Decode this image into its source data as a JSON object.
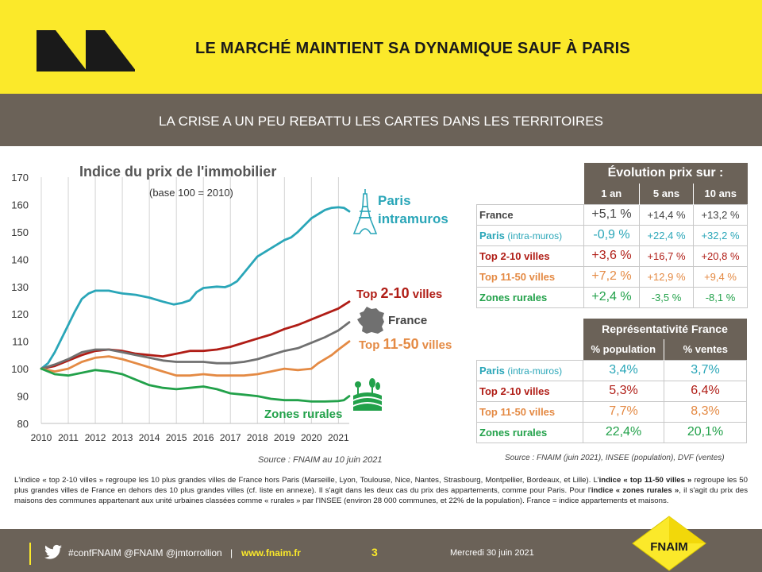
{
  "header": {
    "title": "LE MARCHÉ MAINTIENT SA DYNAMIQUE SAUF À PARIS",
    "subtitle": "LA CRISE A UN PEU REBATTU LES CARTES DANS LES TERRITOIRES"
  },
  "chart_data": {
    "type": "line",
    "title": "Indice du prix de l'immobilier",
    "subtitle": "(base 100 = 2010)",
    "source": "Source :  FNAIM au 10 juin 2021",
    "xlim": [
      2010,
      2021.4
    ],
    "ylim": [
      80,
      170
    ],
    "x_ticks": [
      "2010",
      "2011",
      "2012",
      "2013",
      "2014",
      "2015",
      "2016",
      "2017",
      "2018",
      "2019",
      "2020",
      "2021"
    ],
    "y_ticks": [
      "80",
      "90",
      "100",
      "110",
      "120",
      "130",
      "140",
      "150",
      "160",
      "170"
    ],
    "grid": "vertical",
    "series": [
      {
        "name": "Paris intramuros",
        "color": "#2aa6b8",
        "points": [
          [
            2010,
            100
          ],
          [
            2010.25,
            102
          ],
          [
            2010.5,
            106
          ],
          [
            2010.75,
            111
          ],
          [
            2011,
            116
          ],
          [
            2011.25,
            121
          ],
          [
            2011.5,
            125.5
          ],
          [
            2011.75,
            127.5
          ],
          [
            2012,
            128.5
          ],
          [
            2012.5,
            128.5
          ],
          [
            2012.75,
            128
          ],
          [
            2013,
            127.5
          ],
          [
            2013.5,
            127
          ],
          [
            2014,
            126
          ],
          [
            2014.5,
            124.5
          ],
          [
            2014.9,
            123.5
          ],
          [
            2015.2,
            124
          ],
          [
            2015.5,
            125
          ],
          [
            2015.75,
            128
          ],
          [
            2016,
            129.5
          ],
          [
            2016.5,
            130
          ],
          [
            2016.8,
            129.8
          ],
          [
            2017,
            130.5
          ],
          [
            2017.25,
            132
          ],
          [
            2017.5,
            135
          ],
          [
            2017.75,
            138
          ],
          [
            2018,
            141
          ],
          [
            2018.5,
            144
          ],
          [
            2019,
            147
          ],
          [
            2019.25,
            148
          ],
          [
            2019.5,
            150
          ],
          [
            2019.75,
            152.5
          ],
          [
            2020,
            155
          ],
          [
            2020.25,
            156.5
          ],
          [
            2020.5,
            158
          ],
          [
            2020.75,
            158.8
          ],
          [
            2021,
            159
          ],
          [
            2021.2,
            158.8
          ],
          [
            2021.4,
            157.5
          ]
        ]
      },
      {
        "name": "Top 2-10 villes",
        "color": "#b01d16",
        "points": [
          [
            2010,
            100
          ],
          [
            2010.5,
            101
          ],
          [
            2011,
            103
          ],
          [
            2011.5,
            105
          ],
          [
            2012,
            106.5
          ],
          [
            2012.5,
            107
          ],
          [
            2013,
            106.5
          ],
          [
            2013.5,
            105.5
          ],
          [
            2014,
            105
          ],
          [
            2014.5,
            104.5
          ],
          [
            2015,
            105.5
          ],
          [
            2015.5,
            106.5
          ],
          [
            2016,
            106.5
          ],
          [
            2016.5,
            107
          ],
          [
            2017,
            108
          ],
          [
            2017.5,
            109.5
          ],
          [
            2018,
            111
          ],
          [
            2018.5,
            112.5
          ],
          [
            2019,
            114.5
          ],
          [
            2019.5,
            116
          ],
          [
            2020,
            118
          ],
          [
            2020.5,
            120
          ],
          [
            2021,
            122
          ],
          [
            2021.4,
            124.5
          ]
        ]
      },
      {
        "name": "France",
        "color": "#707070",
        "points": [
          [
            2010,
            100
          ],
          [
            2010.5,
            101.5
          ],
          [
            2011,
            103.5
          ],
          [
            2011.5,
            106
          ],
          [
            2012,
            107
          ],
          [
            2012.5,
            107
          ],
          [
            2013,
            106
          ],
          [
            2013.5,
            105
          ],
          [
            2014,
            104
          ],
          [
            2014.5,
            103
          ],
          [
            2015,
            102.5
          ],
          [
            2015.5,
            102.5
          ],
          [
            2016,
            102.5
          ],
          [
            2016.5,
            102
          ],
          [
            2017,
            102
          ],
          [
            2017.5,
            102.5
          ],
          [
            2018,
            103.5
          ],
          [
            2018.5,
            105
          ],
          [
            2019,
            106.5
          ],
          [
            2019.5,
            107.5
          ],
          [
            2020,
            109.5
          ],
          [
            2020.5,
            111.5
          ],
          [
            2021,
            114
          ],
          [
            2021.4,
            117
          ]
        ]
      },
      {
        "name": "Top 11-50 villes",
        "color": "#e48a44",
        "points": [
          [
            2010,
            100
          ],
          [
            2010.5,
            99
          ],
          [
            2011,
            100
          ],
          [
            2011.5,
            102.5
          ],
          [
            2012,
            104
          ],
          [
            2012.5,
            104.5
          ],
          [
            2013,
            103.5
          ],
          [
            2013.5,
            102
          ],
          [
            2014,
            100.5
          ],
          [
            2014.5,
            99
          ],
          [
            2015,
            97.5
          ],
          [
            2015.5,
            97.5
          ],
          [
            2016,
            98
          ],
          [
            2016.5,
            97.5
          ],
          [
            2017,
            97.5
          ],
          [
            2017.5,
            97.5
          ],
          [
            2018,
            98
          ],
          [
            2018.5,
            99
          ],
          [
            2019,
            100
          ],
          [
            2019.5,
            99.5
          ],
          [
            2020,
            100
          ],
          [
            2020.25,
            102
          ],
          [
            2020.5,
            103.5
          ],
          [
            2020.75,
            105
          ],
          [
            2021,
            107
          ],
          [
            2021.4,
            110
          ]
        ]
      },
      {
        "name": "Zones rurales",
        "color": "#22a14a",
        "points": [
          [
            2010,
            100
          ],
          [
            2010.5,
            98
          ],
          [
            2011,
            97.5
          ],
          [
            2011.5,
            98.5
          ],
          [
            2012,
            99.5
          ],
          [
            2012.5,
            99
          ],
          [
            2013,
            98
          ],
          [
            2013.5,
            96
          ],
          [
            2014,
            94
          ],
          [
            2014.5,
            93
          ],
          [
            2015,
            92.5
          ],
          [
            2015.5,
            93
          ],
          [
            2016,
            93.5
          ],
          [
            2016.5,
            92.5
          ],
          [
            2017,
            91
          ],
          [
            2017.5,
            90.5
          ],
          [
            2018,
            90
          ],
          [
            2018.5,
            89
          ],
          [
            2019,
            88.5
          ],
          [
            2019.5,
            88.5
          ],
          [
            2020,
            88
          ],
          [
            2020.5,
            88
          ],
          [
            2021,
            88.2
          ],
          [
            2021.2,
            88.5
          ],
          [
            2021.4,
            90
          ]
        ]
      }
    ]
  },
  "labels": {
    "paris_line1": "Paris",
    "paris_line2": "intramuros",
    "top210_prefix": "Top ",
    "top210_big": "2-10",
    "top210_suffix": " villes",
    "france": "France",
    "top1150_prefix": "Top ",
    "top1150_big": "11-50",
    "top1150_suffix": " villes",
    "rural": "Zones rurales"
  },
  "evolution_table": {
    "title": "Évolution prix sur :",
    "columns": [
      "1 an",
      "5 ans",
      "10 ans"
    ],
    "rows": [
      {
        "label": "France",
        "small": "",
        "values": [
          "+5,1 %",
          "+14,4 %",
          "+13,2 %"
        ]
      },
      {
        "label": "Paris ",
        "small": "(intra-muros)",
        "values": [
          "-0,9 %",
          "+22,4 %",
          "+32,2 %"
        ]
      },
      {
        "label": "Top 2-10 villes",
        "small": "",
        "values": [
          "+3,6 %",
          "+16,7 %",
          "+20,8 %"
        ]
      },
      {
        "label": "Top 11-50 villes",
        "small": "",
        "values": [
          "+7,2 %",
          "+12,9 %",
          "+9,4 %"
        ]
      },
      {
        "label": "Zones rurales",
        "small": "",
        "values": [
          "+2,4 %",
          "-3,5 %",
          "-8,1 %"
        ]
      }
    ]
  },
  "representativity_table": {
    "title": "Représentativité France",
    "columns": [
      "% population",
      "% ventes"
    ],
    "rows": [
      {
        "label": "Paris ",
        "small": "(intra-muros)",
        "values": [
          "3,4%",
          "3,7%"
        ]
      },
      {
        "label": "Top 2-10 villes",
        "small": "",
        "values": [
          "5,3%",
          "6,4%"
        ]
      },
      {
        "label": "Top 11-50 villes",
        "small": "",
        "values": [
          "7,7%",
          "8,3%"
        ]
      },
      {
        "label": "Zones rurales",
        "small": "",
        "values": [
          "22,4%",
          "20,1%"
        ]
      }
    ]
  },
  "source_right": "Source : FNAIM (juin 2021), INSEE (population), DVF (ventes)",
  "footnote": {
    "p1": "L'indice « top 2-10 villes » regroupe les 10 plus grandes villes de France hors Paris (Marseille, Lyon, Toulouse, Nice, Nantes, Strasbourg, Montpellier, Bordeaux, et Lille). L'",
    "b1": "indice « top 11-50 villes »",
    "p2": " regroupe les 50 plus grandes villes de France en dehors des 10 plus grandes villes (cf. liste en annexe). Il s'agit dans les deux cas du prix des appartements, comme pour Paris. Pour l'",
    "b2": "indice « zones rurales »",
    "p3": ", il s'agit du prix des maisons des communes appartenant aux unité urbaines classées comme « rurales » par l'INSEE (environ 28 000 communes, et 22% de la population). France = indice appartements et maisons."
  },
  "footer": {
    "social": "#confFNAIM @FNAIM @jmtorrollion",
    "sep": "|",
    "website": "www.fnaim.fr",
    "page": "3",
    "date": "Mercredi 30 juin 2021",
    "logo_text": "FNAIM"
  }
}
